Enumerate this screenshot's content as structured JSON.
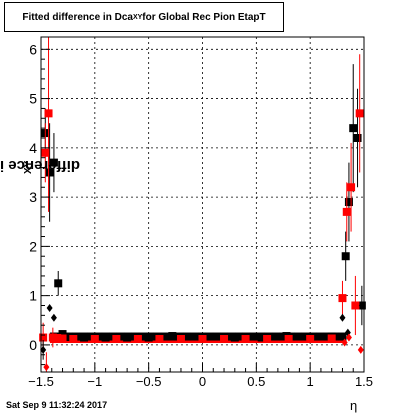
{
  "title": {
    "main": "Fitted difference in Dca",
    "sub": "XY",
    "rest": " for Global Rec Pion EtapT"
  },
  "footer": "Sat Sep  9 11:32:24 2017",
  "ylabel": {
    "main": "difference in Dca",
    "sub": "XY"
  },
  "chart_data": {
    "type": "scatter",
    "xlabel": "η",
    "xlim": [
      -1.5,
      1.5
    ],
    "ylim": [
      -0.55,
      6.25
    ],
    "grid": true,
    "xticks": [
      -1.5,
      -1,
      -0.5,
      0,
      0.5,
      1,
      1.5
    ],
    "xtick_labels": [
      "−1.5",
      "−1",
      "−0.5",
      "0",
      "0.5",
      "1",
      "1.5"
    ],
    "yticks": [
      0,
      1,
      2,
      3,
      4,
      5,
      6
    ],
    "ytick_labels": [
      "0",
      "1",
      "2",
      "3",
      "4",
      "5",
      "6"
    ],
    "colors": {
      "black": "#000000",
      "red": "#ff0000"
    },
    "series": [
      {
        "color": "#000000",
        "marker": "square",
        "points": [
          {
            "x": -1.46,
            "y": 4.3,
            "err": 0.5
          },
          {
            "x": -1.42,
            "y": 3.5,
            "err": 1.0
          },
          {
            "x": -1.38,
            "y": 3.7,
            "err": 0.6
          },
          {
            "x": -1.34,
            "y": 1.25,
            "err": 0.25
          },
          {
            "x": -1.3,
            "y": 0.22
          },
          {
            "x": -1.25,
            "y": 0.16
          },
          {
            "x": -1.1,
            "y": 0.15
          },
          {
            "x": -0.9,
            "y": 0.15
          },
          {
            "x": -0.7,
            "y": 0.15
          },
          {
            "x": -0.5,
            "y": 0.15
          },
          {
            "x": -0.28,
            "y": 0.18
          },
          {
            "x": 0.0,
            "y": 0.15
          },
          {
            "x": 0.3,
            "y": 0.15
          },
          {
            "x": 0.55,
            "y": 0.15
          },
          {
            "x": 0.78,
            "y": 0.18
          },
          {
            "x": 1.0,
            "y": 0.16
          },
          {
            "x": 1.2,
            "y": 0.17
          },
          {
            "x": 1.33,
            "y": 1.8,
            "err": 0.5
          },
          {
            "x": 1.36,
            "y": 2.9,
            "err": 0.8
          },
          {
            "x": 1.4,
            "y": 4.4,
            "err": 1.3
          },
          {
            "x": 1.44,
            "y": 4.2,
            "err": 1.0
          },
          {
            "x": 1.48,
            "y": 0.8,
            "err": 0.4
          }
        ]
      },
      {
        "color": "#ff0000",
        "marker": "square",
        "points": [
          {
            "x": -1.48,
            "y": 0.15,
            "err": 0.3
          },
          {
            "x": -1.46,
            "y": 3.9,
            "err": 0.6
          },
          {
            "x": -1.43,
            "y": 4.7,
            "err": 2.0
          },
          {
            "x": -1.39,
            "y": 0.15,
            "err": 0.2
          },
          {
            "x": -1.35,
            "y": 0.14
          },
          {
            "x": -1.3,
            "y": 0.13
          },
          {
            "x": -1.2,
            "y": 0.12
          },
          {
            "x": -1.0,
            "y": 0.12
          },
          {
            "x": -0.8,
            "y": 0.12
          },
          {
            "x": -0.6,
            "y": 0.12
          },
          {
            "x": -0.4,
            "y": 0.12
          },
          {
            "x": -0.2,
            "y": 0.12
          },
          {
            "x": 0.0,
            "y": 0.12
          },
          {
            "x": 0.2,
            "y": 0.12
          },
          {
            "x": 0.4,
            "y": 0.12
          },
          {
            "x": 0.6,
            "y": 0.12
          },
          {
            "x": 0.8,
            "y": 0.12
          },
          {
            "x": 1.0,
            "y": 0.12
          },
          {
            "x": 1.2,
            "y": 0.13
          },
          {
            "x": 1.3,
            "y": 0.95,
            "err": 0.35
          },
          {
            "x": 1.34,
            "y": 2.7,
            "err": 0.6
          },
          {
            "x": 1.38,
            "y": 3.2,
            "err": 0.9
          },
          {
            "x": 1.42,
            "y": 0.8,
            "err": 0.6
          },
          {
            "x": 1.46,
            "y": 4.7,
            "err": 1.2
          }
        ]
      },
      {
        "color": "#000000",
        "marker": "diamond",
        "points": [
          {
            "x": -1.48,
            "y": -0.1,
            "err": 0.2
          },
          {
            "x": -1.42,
            "y": 0.75
          },
          {
            "x": -1.38,
            "y": 0.55
          },
          {
            "x": 1.3,
            "y": 0.55
          },
          {
            "x": 1.35,
            "y": 0.25
          },
          {
            "x": 1.48,
            "y": 0.8
          }
        ]
      },
      {
        "color": "#ff0000",
        "marker": "diamond",
        "points": [
          {
            "x": -1.45,
            "y": -0.45,
            "err": 0.3
          },
          {
            "x": 1.32,
            "y": 0.05
          },
          {
            "x": 1.36,
            "y": 0.15
          },
          {
            "x": 1.47,
            "y": -0.1
          }
        ]
      }
    ],
    "red_band": {
      "from": -1.38,
      "to": 1.3,
      "y": 0.12,
      "count": 75,
      "color": "#ff0000"
    },
    "black_band": {
      "from": -1.38,
      "to": 1.3,
      "y": 0.17,
      "count": 40,
      "color": "#000000"
    }
  }
}
